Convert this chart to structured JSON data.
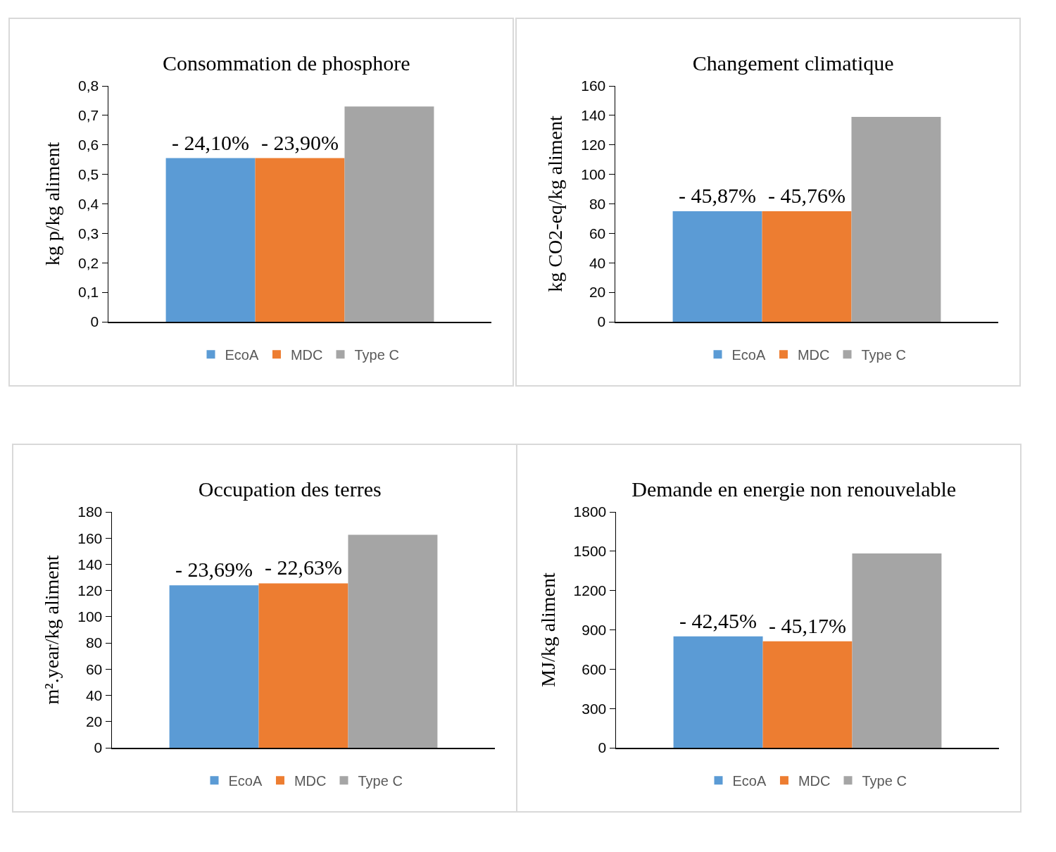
{
  "chart_data": [
    {
      "type": "bar",
      "title": "Consommation de phosphore",
      "ylabel": "kg p/kg aliment",
      "categories": [
        null
      ],
      "series": [
        {
          "name": "EcoA",
          "color": "#5b9bd5",
          "values": [
            0.555
          ]
        },
        {
          "name": "MDC",
          "color": "#ed7d31",
          "values": [
            0.555
          ]
        },
        {
          "name": "Type C",
          "color": "#a5a5a5",
          "values": [
            0.73
          ]
        }
      ],
      "annotations": [
        {
          "text": "- 24,10%",
          "y": 0.555
        },
        {
          "text": "- 23,90%",
          "y": 0.555
        }
      ],
      "ylim": [
        0,
        0.8
      ],
      "yticks": [
        0,
        {
          "value": 0.1,
          "label": "0,1"
        },
        {
          "value": 0.2,
          "label": "0,2"
        },
        {
          "value": 0.3,
          "label": "0,3"
        },
        {
          "value": 0.4,
          "label": "0,4"
        },
        {
          "value": 0.5,
          "label": "0,5"
        },
        {
          "value": 0.6,
          "label": "0,6"
        },
        {
          "value": 0.7,
          "label": "0,7"
        },
        {
          "value": 0.8,
          "label": "0,8"
        }
      ],
      "grid": false,
      "legend": "bottom",
      "tick_labels": "y"
    },
    {
      "type": "bar",
      "title": "Changement climatique",
      "ylabel": "kg CO2-eq/kg aliment",
      "categories": [
        null
      ],
      "series": [
        {
          "name": "EcoA",
          "color": "#5b9bd5",
          "values": [
            75
          ]
        },
        {
          "name": "MDC",
          "color": "#ed7d31",
          "values": [
            75
          ]
        },
        {
          "name": "Type C",
          "color": "#a5a5a5",
          "values": [
            139
          ]
        }
      ],
      "annotations": [
        {
          "text": "- 45,87%",
          "y": 75
        },
        {
          "text": "- 45,76%",
          "y": 75
        }
      ],
      "ylim": [
        0,
        160
      ],
      "yticks": [
        0,
        20,
        40,
        60,
        80,
        100,
        120,
        140,
        160
      ],
      "grid": false,
      "legend": "bottom",
      "tick_labels": "y"
    },
    {
      "type": "bar",
      "title": "Occupation des terres",
      "ylabel": "m².year/kg aliment",
      "categories": [
        null
      ],
      "series": [
        {
          "name": "EcoA",
          "color": "#5b9bd5",
          "values": [
            124
          ]
        },
        {
          "name": "MDC",
          "color": "#ed7d31",
          "values": [
            125.5
          ]
        },
        {
          "name": "Type C",
          "color": "#a5a5a5",
          "values": [
            162.5
          ]
        }
      ],
      "annotations": [
        {
          "text": "- 23,69%",
          "y": 124
        },
        {
          "text": "- 22,63%",
          "y": 125.5
        }
      ],
      "ylim": [
        0,
        180
      ],
      "yticks": [
        0,
        20,
        40,
        60,
        80,
        100,
        120,
        140,
        160,
        180
      ],
      "grid": false,
      "legend": "bottom",
      "tick_labels": "y"
    },
    {
      "type": "bar",
      "title": "Demande en energie non renouvelable",
      "ylabel": "MJ/kg aliment",
      "categories": [
        null
      ],
      "series": [
        {
          "name": "EcoA",
          "color": "#5b9bd5",
          "values": [
            850
          ]
        },
        {
          "name": "MDC",
          "color": "#ed7d31",
          "values": [
            813
          ]
        },
        {
          "name": "Type C",
          "color": "#a5a5a5",
          "values": [
            1483
          ]
        }
      ],
      "annotations": [
        {
          "text": "- 42,45%",
          "y": 850
        },
        {
          "text": "- 45,17%",
          "y": 813
        }
      ],
      "ylim": [
        0,
        1800
      ],
      "yticks": [
        0,
        300,
        600,
        900,
        1200,
        1500,
        1800
      ],
      "grid": false,
      "legend": "bottom",
      "tick_labels": "y"
    }
  ]
}
